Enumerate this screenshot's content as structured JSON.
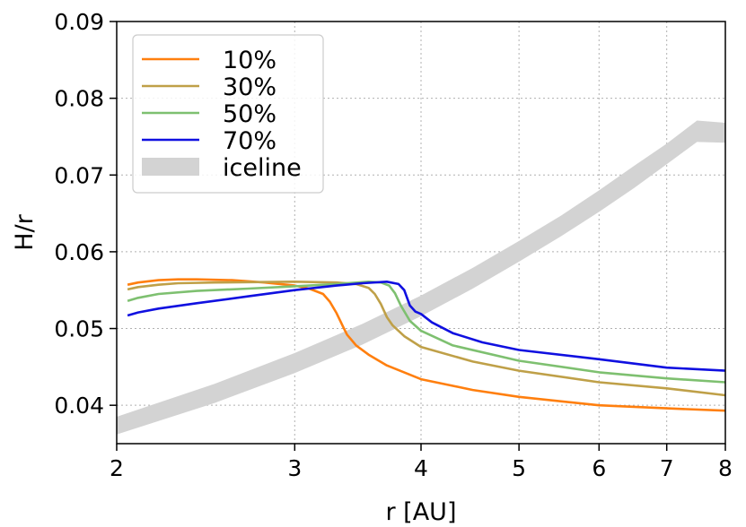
{
  "chart_data": {
    "type": "line",
    "xlabel": "r [AU]",
    "ylabel": "H/r",
    "xscale": "log",
    "xlim": [
      2,
      8
    ],
    "ylim": [
      0.035,
      0.09
    ],
    "xticks": [
      2,
      3,
      4,
      5,
      6,
      7,
      8
    ],
    "xtick_labels": [
      "2",
      "3",
      "4",
      "5",
      "6",
      "7",
      "8"
    ],
    "yticks": [
      0.04,
      0.05,
      0.06,
      0.07,
      0.08,
      0.09
    ],
    "ytick_labels": [
      "0.04",
      "0.05",
      "0.06",
      "0.07",
      "0.08",
      "0.09"
    ],
    "grid": true,
    "legend_position": "top-left",
    "series": [
      {
        "name": "10%",
        "color": "#ff7f0e",
        "x": [
          2.05,
          2.1,
          2.2,
          2.3,
          2.4,
          2.6,
          2.8,
          3.0,
          3.1,
          3.2,
          3.25,
          3.3,
          3.35,
          3.38,
          3.45,
          3.55,
          3.7,
          4.0,
          4.5,
          5.0,
          6.0,
          7.0,
          8.0
        ],
        "y": [
          0.0557,
          0.056,
          0.0563,
          0.0564,
          0.0564,
          0.0563,
          0.056,
          0.0556,
          0.0552,
          0.0545,
          0.0535,
          0.052,
          0.0502,
          0.0492,
          0.0478,
          0.0466,
          0.0452,
          0.0434,
          0.042,
          0.0411,
          0.04,
          0.0396,
          0.0393
        ]
      },
      {
        "name": "30%",
        "color": "#bfa048",
        "x": [
          2.05,
          2.1,
          2.2,
          2.3,
          2.5,
          3.0,
          3.3,
          3.45,
          3.55,
          3.6,
          3.65,
          3.7,
          3.75,
          3.85,
          4.0,
          4.5,
          5.0,
          6.0,
          7.0,
          8.0
        ],
        "y": [
          0.0551,
          0.0554,
          0.0557,
          0.0559,
          0.056,
          0.0561,
          0.056,
          0.0558,
          0.0553,
          0.0545,
          0.0532,
          0.0515,
          0.0504,
          0.049,
          0.0476,
          0.0457,
          0.0445,
          0.043,
          0.0422,
          0.0413
        ]
      },
      {
        "name": "50%",
        "color": "#7ec070",
        "x": [
          2.05,
          2.1,
          2.2,
          2.4,
          2.7,
          3.0,
          3.3,
          3.55,
          3.65,
          3.72,
          3.77,
          3.82,
          3.9,
          4.0,
          4.3,
          5.0,
          6.0,
          7.0,
          8.0
        ],
        "y": [
          0.0536,
          0.054,
          0.0545,
          0.0549,
          0.0552,
          0.0555,
          0.0558,
          0.0561,
          0.056,
          0.0556,
          0.0546,
          0.053,
          0.051,
          0.0497,
          0.0478,
          0.0458,
          0.0443,
          0.0435,
          0.043
        ]
      },
      {
        "name": "70%",
        "color": "#1010e0",
        "x": [
          2.05,
          2.1,
          2.2,
          2.4,
          2.7,
          3.0,
          3.3,
          3.5,
          3.7,
          3.8,
          3.85,
          3.9,
          3.95,
          4.0,
          4.1,
          4.3,
          4.6,
          5.0,
          6.0,
          7.0,
          8.0
        ],
        "y": [
          0.0517,
          0.0521,
          0.0526,
          0.0533,
          0.0542,
          0.055,
          0.0556,
          0.0559,
          0.0561,
          0.0558,
          0.055,
          0.053,
          0.0522,
          0.0519,
          0.0508,
          0.0494,
          0.0482,
          0.0472,
          0.046,
          0.0449,
          0.0445
        ]
      }
    ],
    "bands": [
      {
        "name": "iceline",
        "color": "#d3d3d3",
        "x": [
          2.0,
          2.5,
          3.0,
          3.5,
          4.0,
          4.5,
          5.0,
          5.5,
          6.0,
          6.5,
          7.0,
          7.5,
          8.0
        ],
        "y_low": [
          0.0362,
          0.0403,
          0.0442,
          0.0479,
          0.0516,
          0.0552,
          0.0587,
          0.062,
          0.0652,
          0.0683,
          0.0714,
          0.0743,
          0.0742
        ],
        "y_high": [
          0.0385,
          0.0428,
          0.0468,
          0.0506,
          0.0543,
          0.0579,
          0.0614,
          0.0647,
          0.068,
          0.0712,
          0.0741,
          0.0771,
          0.0768
        ]
      }
    ]
  }
}
